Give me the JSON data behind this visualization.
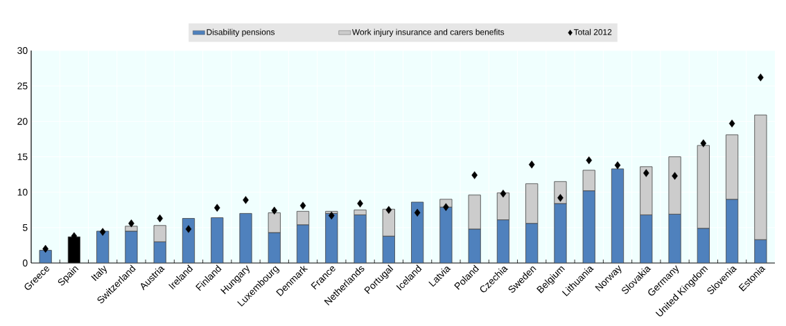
{
  "chart_data": {
    "type": "bar",
    "stacked": true,
    "categories": [
      "Greece",
      "Spain",
      "Italy",
      "Switzerland",
      "Austria",
      "Ireland",
      "Finland",
      "Hungary",
      "Luxembourg",
      "Denmark",
      "France",
      "Netherlands",
      "Portugal",
      "Iceland",
      "Latvia",
      "Poland",
      "Czechia",
      "Sweden",
      "Belgium",
      "Lithuania",
      "Norway",
      "Slovakia",
      "Germany",
      "United Kingdom",
      "Slovenia",
      "Estonia"
    ],
    "series": [
      {
        "name": "Disability pensions",
        "color": "#4f81bd",
        "colors": [
          "#4f81bd",
          "#000000",
          "#4f81bd",
          "#4f81bd",
          "#4f81bd",
          "#4f81bd",
          "#4f81bd",
          "#4f81bd",
          "#4f81bd",
          "#4f81bd",
          "#4f81bd",
          "#4f81bd",
          "#4f81bd",
          "#4f81bd",
          "#4f81bd",
          "#4f81bd",
          "#4f81bd",
          "#4f81bd",
          "#4f81bd",
          "#4f81bd",
          "#4f81bd",
          "#4f81bd",
          "#4f81bd",
          "#4f81bd",
          "#4f81bd",
          "#4f81bd"
        ],
        "values": [
          1.8,
          3.7,
          4.5,
          4.5,
          3.0,
          6.3,
          6.4,
          7.0,
          4.3,
          5.4,
          7.0,
          6.8,
          3.8,
          8.6,
          7.9,
          4.8,
          6.1,
          5.6,
          8.4,
          10.2,
          13.3,
          6.8,
          6.9,
          4.9,
          9.0,
          3.3
        ]
      },
      {
        "name": "Work injury insurance and carers benefits",
        "color": "#cccccc",
        "values": [
          0,
          0,
          0,
          0.7,
          2.3,
          0,
          0,
          0,
          2.8,
          1.9,
          0.3,
          0.7,
          3.8,
          0,
          1.1,
          4.8,
          3.8,
          5.6,
          3.1,
          2.9,
          0,
          6.8,
          8.1,
          11.7,
          9.1,
          17.6
        ]
      },
      {
        "name": "Total 2012",
        "type": "scatter",
        "color": "#000000",
        "marker": "diamond",
        "values": [
          2.0,
          3.8,
          4.4,
          5.6,
          6.3,
          4.8,
          7.8,
          8.9,
          7.4,
          8.1,
          6.7,
          8.4,
          7.5,
          7.1,
          7.9,
          12.4,
          9.8,
          13.9,
          9.2,
          14.5,
          13.8,
          12.7,
          12.3,
          16.9,
          19.7,
          26.2
        ]
      }
    ],
    "ylim": [
      0,
      30
    ],
    "yticks": [
      0,
      5,
      10,
      15,
      20,
      25,
      30
    ],
    "grid": true,
    "legend": "top"
  }
}
